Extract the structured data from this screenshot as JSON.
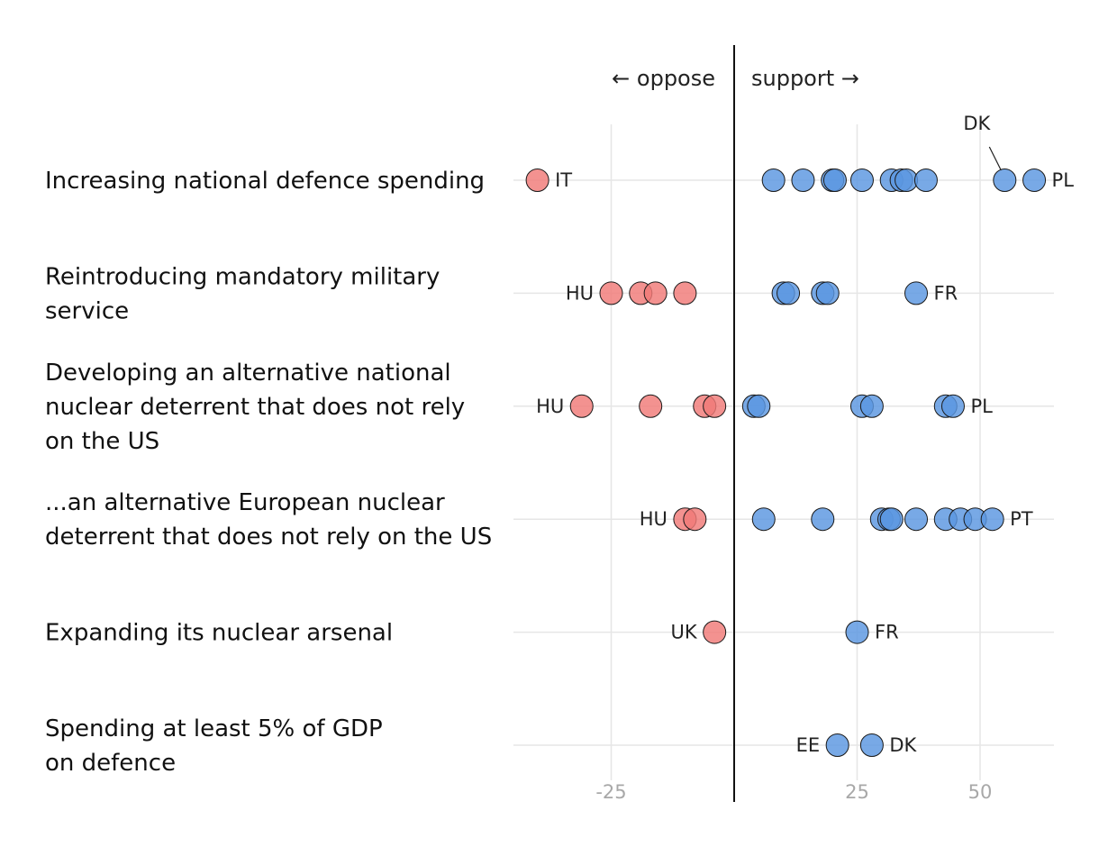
{
  "chart_data": {
    "type": "scatter",
    "subtype": "dot-strip",
    "direction_labels": {
      "oppose": "← oppose",
      "support": "support →"
    },
    "x_ticks": [
      {
        "value": -25,
        "label": "-25"
      },
      {
        "value": 25,
        "label": "25"
      },
      {
        "value": 50,
        "label": "50"
      }
    ],
    "xlim": [
      -45,
      65
    ],
    "colors": {
      "oppose": "#f07a78",
      "support": "#5a96e0"
    },
    "rows": [
      {
        "label": [
          "Increasing national defence spending"
        ],
        "values": [
          -40,
          8,
          14,
          20,
          20.5,
          26,
          32,
          34,
          35,
          39,
          55,
          61
        ],
        "labels": [
          {
            "value": -40,
            "text": "IT",
            "side": "right"
          },
          {
            "value": 55,
            "text": "DK",
            "side": "above"
          },
          {
            "value": 61,
            "text": "PL",
            "side": "right"
          }
        ]
      },
      {
        "label": [
          "Reintroducing mandatory military",
          "service"
        ],
        "values": [
          -25,
          -19,
          -16,
          -10,
          10,
          11,
          18,
          19,
          37
        ],
        "labels": [
          {
            "value": -25,
            "text": "HU",
            "side": "left"
          },
          {
            "value": 37,
            "text": "FR",
            "side": "right"
          }
        ]
      },
      {
        "label": [
          "Developing an alternative national",
          "nuclear deterrent that does not rely",
          "on the US"
        ],
        "values": [
          -31,
          -17,
          -6,
          -4,
          4,
          5,
          26,
          28,
          43,
          44.5
        ],
        "labels": [
          {
            "value": -31,
            "text": "HU",
            "side": "left"
          },
          {
            "value": 44.5,
            "text": "PL",
            "side": "right"
          }
        ]
      },
      {
        "label": [
          "...an alternative European nuclear",
          "deterrent that does not rely on the US"
        ],
        "values": [
          -10,
          -8,
          6,
          18,
          30,
          31.5,
          32,
          37,
          43,
          46,
          49,
          52.5
        ],
        "labels": [
          {
            "value": -10,
            "text": "HU",
            "side": "left"
          },
          {
            "value": 52.5,
            "text": "PT",
            "side": "right"
          }
        ]
      },
      {
        "label": [
          "Expanding its nuclear arsenal"
        ],
        "values": [
          -4,
          25
        ],
        "labels": [
          {
            "value": -4,
            "text": "UK",
            "side": "left"
          },
          {
            "value": 25,
            "text": "FR",
            "side": "right"
          }
        ]
      },
      {
        "label": [
          "Spending at least 5% of GDP",
          "on defence"
        ],
        "values": [
          21,
          28
        ],
        "labels": [
          {
            "value": 21,
            "text": "EE",
            "side": "left"
          },
          {
            "value": 28,
            "text": "DK",
            "side": "right"
          }
        ]
      }
    ]
  }
}
